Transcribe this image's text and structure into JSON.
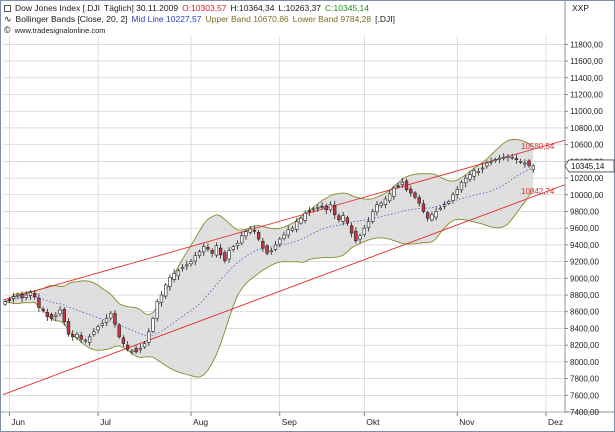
{
  "header": {
    "instrument": "Dow Jones Index [.DJI",
    "interval": "Täglich] 30.11.2009",
    "open": "O:10303,57",
    "high": "H:10364,34",
    "low": "L:10263,37",
    "close": "C:10345,14",
    "indicator_name": "Bollinger Bands [Close, 20, 2]",
    "mid_line": "Mid Line 10227,57",
    "upper_band": "Upper Band 10670,86",
    "lower_band": "Lower Band 9784,28",
    "indicator_symbol": "[.DJI]",
    "source": "www.tradesignalonline.com",
    "symbol": "XXP"
  },
  "colors": {
    "up_candle": "#ffffff",
    "down_candle": "#cc3344",
    "band_fill": "#d9d9d9",
    "band_line": "#8a8a2a",
    "mid_line": "#4a5bd0",
    "trend_line": "#e03030",
    "grid": "#c8c8c8",
    "price_label_bg": "#ffffff"
  },
  "chart_data": {
    "type": "candlestick",
    "y_axis_side": "right",
    "ylim": [
      7400,
      11900
    ],
    "y_ticks": [
      "7400,00",
      "7600,00",
      "7800,00",
      "8000,00",
      "8200,00",
      "8400,00",
      "8600,00",
      "8800,00",
      "9000,00",
      "9200,00",
      "9400,00",
      "9600,00",
      "9800,00",
      "10000,00",
      "10200,00",
      "10400,00",
      "10600,00",
      "10800,00",
      "11000,00",
      "11200,00",
      "11400,00",
      "11600,00",
      "11800,00"
    ],
    "y_tick_values": [
      7400,
      7600,
      7800,
      8000,
      8200,
      8400,
      8600,
      8800,
      9000,
      9200,
      9400,
      9600,
      9800,
      10000,
      10200,
      10400,
      10600,
      10800,
      11000,
      11200,
      11400,
      11600,
      11800
    ],
    "x_ticks": [
      {
        "label": "Jun",
        "index": 1
      },
      {
        "label": "Jul",
        "index": 22
      },
      {
        "label": "Aug",
        "index": 44
      },
      {
        "label": "Sep",
        "index": 65
      },
      {
        "label": "Okt",
        "index": 85
      },
      {
        "label": "Nov",
        "index": 107
      },
      {
        "label": "Dez",
        "index": 128
      }
    ],
    "grid": true,
    "x_range": [
      0,
      133
    ],
    "closes": [
      8720,
      8740,
      8780,
      8800,
      8770,
      8800,
      8830,
      8780,
      8650,
      8620,
      8540,
      8520,
      8560,
      8620,
      8480,
      8330,
      8300,
      8330,
      8270,
      8260,
      8300,
      8360,
      8420,
      8460,
      8520,
      8580,
      8450,
      8300,
      8220,
      8150,
      8130,
      8120,
      8160,
      8220,
      8360,
      8520,
      8720,
      8800,
      8920,
      9010,
      9060,
      9090,
      9130,
      9160,
      9200,
      9270,
      9320,
      9380,
      9350,
      9300,
      9390,
      9280,
      9210,
      9330,
      9380,
      9420,
      9510,
      9560,
      9590,
      9570,
      9470,
      9360,
      9300,
      9330,
      9400,
      9470,
      9520,
      9580,
      9600,
      9680,
      9720,
      9780,
      9800,
      9830,
      9850,
      9860,
      9820,
      9880,
      9760,
      9700,
      9750,
      9660,
      9540,
      9450,
      9510,
      9600,
      9680,
      9800,
      9880,
      9900,
      9950,
      10010,
      10080,
      10100,
      10150,
      10060,
      10020,
      9970,
      9900,
      9800,
      9720,
      9760,
      9800,
      9840,
      9880,
      9920,
      10000,
      10060,
      10150,
      10200,
      10240,
      10290,
      10280,
      10320,
      10380,
      10400,
      10420,
      10440,
      10450,
      10460,
      10450,
      10420,
      10400,
      10380,
      10350,
      10345
    ],
    "candles_note": "Open/High/Low derived from closes",
    "last": {
      "O": 10303.57,
      "H": 10364.34,
      "L": 10263.37,
      "C": 10345.14
    },
    "bollinger": {
      "period": 20,
      "stddev": 2,
      "mid": 10227.57,
      "upper": 10670.86,
      "lower": 9784.28
    },
    "trend_channel": {
      "upper": {
        "start_index": -2,
        "start_value": 8720,
        "end_index": 133,
        "end_value": 10660,
        "label": "10580,54",
        "label_value": 10580.54
      },
      "lower": {
        "start_index": -2,
        "start_value": 7580,
        "end_index": 133,
        "end_value": 10130,
        "label": "10042,74",
        "label_value": 10042.74
      }
    },
    "price_label": "10345,14",
    "price_label_value": 10345.14
  }
}
